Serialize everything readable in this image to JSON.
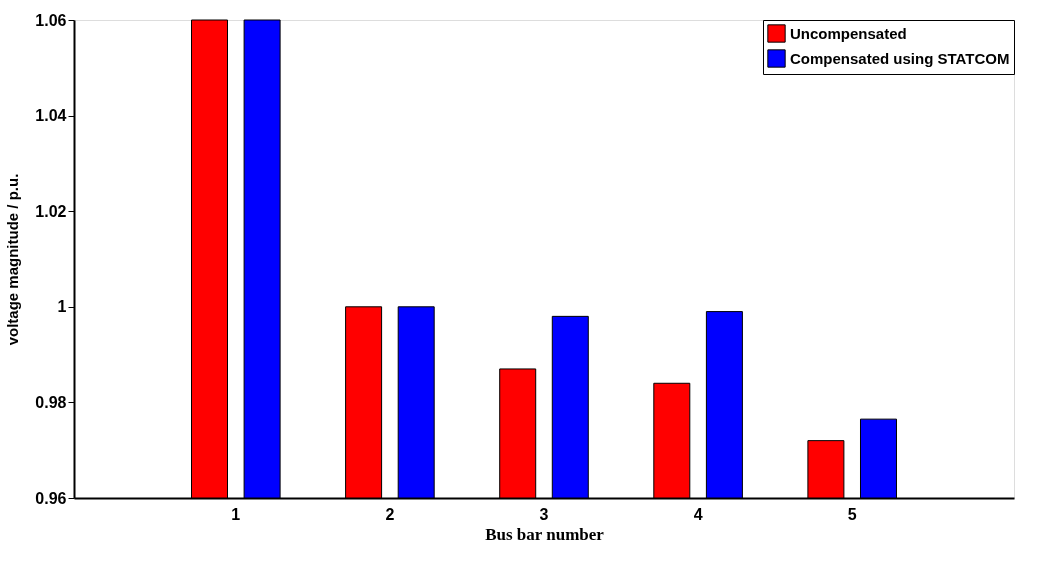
{
  "chart_data": {
    "type": "bar",
    "xlabel": "Bus bar number",
    "ylabel": "voltage magnitude / p.u.",
    "categories": [
      "1",
      "2",
      "3",
      "4",
      "5"
    ],
    "series": [
      {
        "name": "Uncompensated",
        "color": "#ff0000",
        "values": [
          1.06,
          1.0,
          0.987,
          0.984,
          0.972
        ]
      },
      {
        "name": "Compensated using STATCOM",
        "color": "#0000ff",
        "values": [
          1.06,
          1.0,
          0.998,
          0.999,
          0.9765
        ]
      }
    ],
    "ylim": [
      0.96,
      1.06
    ],
    "yticks": [
      0.96,
      0.98,
      1,
      1.02,
      1.04,
      1.06
    ],
    "grid": false,
    "legend": "top right"
  }
}
